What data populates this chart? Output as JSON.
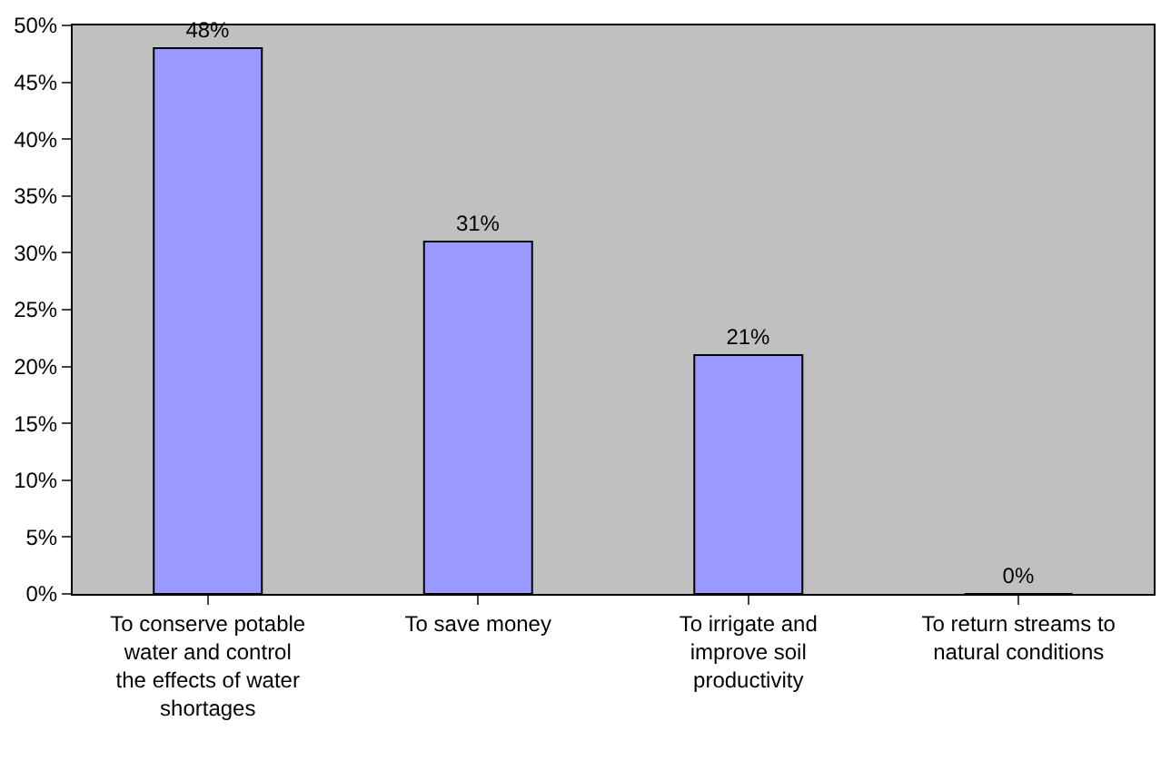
{
  "chart_data": {
    "type": "bar",
    "categories": [
      "To conserve potable water and control the effects of water shortages",
      "To save money",
      "To irrigate and improve soil productivity",
      "To return streams to natural conditions"
    ],
    "values": [
      48,
      31,
      21,
      0
    ],
    "color": "#9999ff",
    "value_labels": [
      "48%",
      "31%",
      "21%",
      "0%"
    ],
    "ylim": [
      0,
      50
    ],
    "yticks": [
      {
        "value": 0,
        "label": "0%"
      },
      {
        "value": 5,
        "label": "5%"
      },
      {
        "value": 10,
        "label": "10%"
      },
      {
        "value": 15,
        "label": "15%"
      },
      {
        "value": 20,
        "label": "20%"
      },
      {
        "value": 25,
        "label": "25%"
      },
      {
        "value": 30,
        "label": "30%"
      },
      {
        "value": 35,
        "label": "35%"
      },
      {
        "value": 40,
        "label": "40%"
      },
      {
        "value": 45,
        "label": "45%"
      },
      {
        "value": 50,
        "label": "50%"
      }
    ],
    "grid": false
  }
}
